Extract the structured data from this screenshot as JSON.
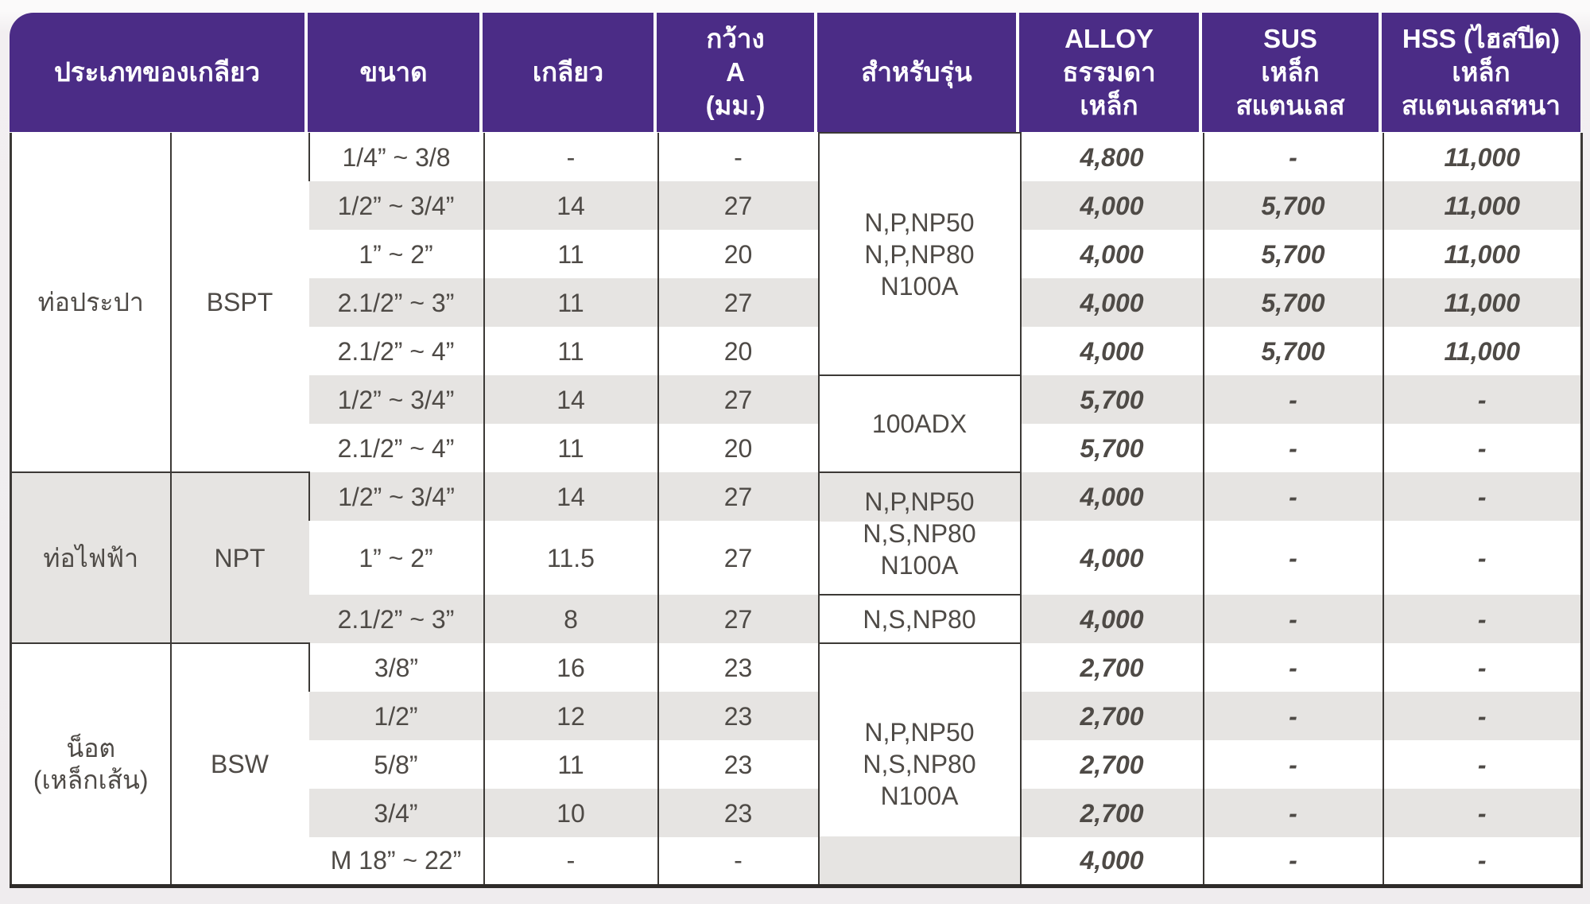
{
  "colors": {
    "header_purple": "#4b2c86",
    "price_orange": "#ee4723",
    "stripe_gray": "#e6e4e2",
    "text_dark": "#4e4a46",
    "grid_line": "#3c3936"
  },
  "table": {
    "header": {
      "columns": [
        {
          "id": "type",
          "label": "ประเภทของเกลียว"
        },
        {
          "id": "size",
          "label": "ขนาด"
        },
        {
          "id": "threads",
          "label": "เกลียว"
        },
        {
          "id": "width",
          "label": "กว้าง\nA\n(มม.)"
        },
        {
          "id": "model",
          "label": "สำหรับรุ่น"
        },
        {
          "id": "alloy",
          "label": "ALLOY\nธรรมดา\nเหล็ก"
        },
        {
          "id": "sus",
          "label": "SUS\nเหล็ก\nสแตนเลส"
        },
        {
          "id": "hss",
          "label": "HSS (ไฮสปีด)\nเหล็ก\nสแตนเลสหนา"
        }
      ]
    },
    "rows": [
      {
        "group": {
          "name": "ท่อประปา",
          "standard": "BSPT",
          "span": 7
        },
        "size": "1/4” ~ 3/8",
        "threads": "-",
        "width": "-",
        "model": {
          "text": "N,P,NP50\nN,P,NP80\nN100A",
          "span": 5
        },
        "alloy": "4,800",
        "sus": "-",
        "hss": "11,000"
      },
      {
        "size": "1/2” ~ 3/4”",
        "threads": "14",
        "width": "27",
        "alloy": "4,000",
        "sus": "5,700",
        "hss": "11,000"
      },
      {
        "size": "1” ~ 2”",
        "threads": "11",
        "width": "20",
        "alloy": "4,000",
        "sus": "5,700",
        "hss": "11,000"
      },
      {
        "size": "2.1/2” ~ 3”",
        "threads": "11",
        "width": "27",
        "alloy": "4,000",
        "sus": "5,700",
        "hss": "11,000"
      },
      {
        "size": "2.1/2” ~ 4”",
        "threads": "11",
        "width": "20",
        "alloy": "4,000",
        "sus": "5,700",
        "hss": "11,000"
      },
      {
        "size": "1/2” ~ 3/4”",
        "threads": "14",
        "width": "27",
        "model": {
          "text": "100ADX",
          "span": 2
        },
        "alloy": "5,700",
        "sus": "-",
        "hss": "-"
      },
      {
        "size": "2.1/2” ~ 4”",
        "threads": "11",
        "width": "20",
        "alloy": "5,700",
        "sus": "-",
        "hss": "-"
      },
      {
        "group": {
          "name": "ท่อไฟฟ้า",
          "standard": "NPT",
          "span": 3
        },
        "size": "1/2” ~ 3/4”",
        "threads": "14",
        "width": "27",
        "model": {
          "text": "N,P,NP50\nN,S,NP80\nN100A",
          "span": 2
        },
        "alloy": "4,000",
        "sus": "-",
        "hss": "-"
      },
      {
        "size": "1” ~ 2”",
        "threads": "11.5",
        "width": "27",
        "alloy": "4,000",
        "sus": "-",
        "hss": "-",
        "tall": true
      },
      {
        "size": "2.1/2” ~ 3”",
        "threads": "8",
        "width": "27",
        "model": {
          "text": "N,S,NP80",
          "span": 1
        },
        "alloy": "4,000",
        "sus": "-",
        "hss": "-"
      },
      {
        "group": {
          "name": "น็อต\n(เหล็กเส้น)",
          "standard": "BSW",
          "span": 5
        },
        "size": "3/8”",
        "threads": "16",
        "width": "23",
        "model": {
          "text": "N,P,NP50\nN,S,NP80\nN100A",
          "span": 5
        },
        "alloy": "2,700",
        "sus": "-",
        "hss": "-"
      },
      {
        "size": "1/2”",
        "threads": "12",
        "width": "23",
        "alloy": "2,700",
        "sus": "-",
        "hss": "-"
      },
      {
        "size": "5/8”",
        "threads": "11",
        "width": "23",
        "alloy": "2,700",
        "sus": "-",
        "hss": "-"
      },
      {
        "size": "3/4”",
        "threads": "10",
        "width": "23",
        "alloy": "2,700",
        "sus": "-",
        "hss": "-"
      },
      {
        "size": "M 18” ~ 22”",
        "threads": "-",
        "width": "-",
        "alloy": "4,000",
        "sus": "-",
        "hss": "-"
      }
    ]
  }
}
